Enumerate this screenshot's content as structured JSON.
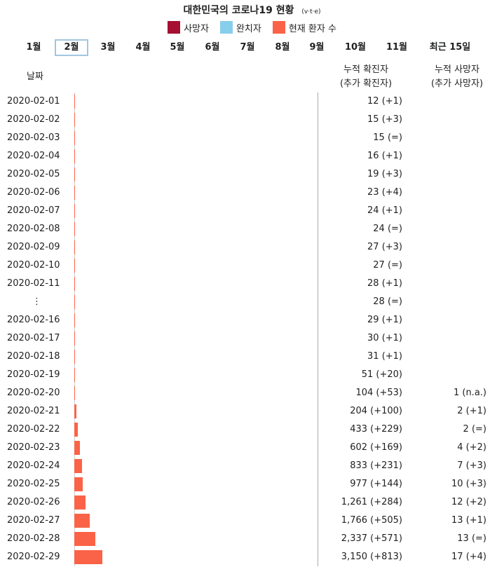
{
  "title": "대한민국의 코로나19 현황",
  "vte": [
    "v",
    "t",
    "e"
  ],
  "legend": [
    {
      "label": "사망자",
      "color": "#a50f32"
    },
    {
      "label": "완치자",
      "color": "#87ceeb"
    },
    {
      "label": "현재 환자 수",
      "color": "#fa6347"
    }
  ],
  "months": [
    "1월",
    "2월",
    "3월",
    "4월",
    "5월",
    "6월",
    "7월",
    "8월",
    "9월",
    "10월",
    "11월",
    "최근 15일"
  ],
  "active_month": "2월",
  "headers": {
    "date": "날짜",
    "cases_line1": "누적 확진자",
    "cases_line2": "(추가 확진자)",
    "deaths_line1": "누적 사망자",
    "deaths_line2": "(추가 사망자)"
  },
  "chart_data": {
    "type": "bar",
    "orientation": "horizontal",
    "categories": [
      "2020-02-01",
      "2020-02-02",
      "2020-02-03",
      "2020-02-04",
      "2020-02-05",
      "2020-02-06",
      "2020-02-07",
      "2020-02-08",
      "2020-02-09",
      "2020-02-10",
      "2020-02-11",
      "⋮",
      "2020-02-16",
      "2020-02-17",
      "2020-02-18",
      "2020-02-19",
      "2020-02-20",
      "2020-02-21",
      "2020-02-22",
      "2020-02-23",
      "2020-02-24",
      "2020-02-25",
      "2020-02-26",
      "2020-02-27",
      "2020-02-28",
      "2020-02-29"
    ],
    "series": [
      {
        "name": "현재 환자 수",
        "values": [
          12,
          15,
          15,
          16,
          19,
          23,
          24,
          24,
          27,
          27,
          28,
          28,
          29,
          30,
          31,
          51,
          103,
          202,
          431,
          598,
          826,
          967,
          1249,
          1753,
          2324,
          3133
        ]
      },
      {
        "name": "사망자",
        "values": [
          0,
          0,
          0,
          0,
          0,
          0,
          0,
          0,
          0,
          0,
          0,
          0,
          0,
          0,
          0,
          0,
          1,
          2,
          2,
          4,
          7,
          10,
          12,
          13,
          13,
          17
        ]
      }
    ],
    "cases_labels": [
      "12 (+1)",
      "15 (+3)",
      "15 (=)",
      "16 (+1)",
      "19 (+3)",
      "23 (+4)",
      "24 (+1)",
      "24 (=)",
      "27 (+3)",
      "27 (=)",
      "28 (+1)",
      "28 (=)",
      "29 (+1)",
      "30 (+1)",
      "31 (+1)",
      "51 (+20)",
      "104 (+53)",
      "204 (+100)",
      "433 (+229)",
      "602 (+169)",
      "833 (+231)",
      "977 (+144)",
      "1,261 (+284)",
      "1,766 (+505)",
      "2,337 (+571)",
      "3,150 (+813)"
    ],
    "deaths_labels": [
      "",
      "",
      "",
      "",
      "",
      "",
      "",
      "",
      "",
      "",
      "",
      "",
      "",
      "",
      "",
      "",
      "1 (n.a.)",
      "2 (+1)",
      "2 (=)",
      "4 (+2)",
      "7 (+3)",
      "10 (+3)",
      "12 (+2)",
      "13 (+1)",
      "13 (=)",
      "17 (+4)"
    ]
  }
}
